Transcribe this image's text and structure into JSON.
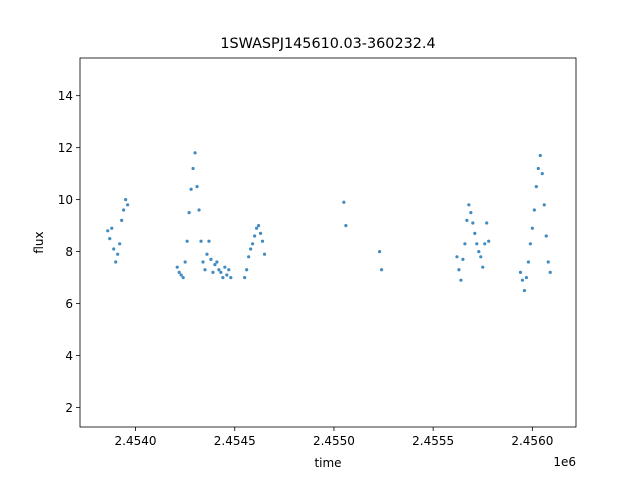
{
  "chart_data": {
    "type": "scatter",
    "title": "1SWASPJ145610.03-360232.4",
    "xlabel": "time",
    "ylabel": "flux",
    "x_offset_label": "1e6",
    "xlim": [
      2.45372,
      2.45622
    ],
    "ylim": [
      1.25,
      15.45
    ],
    "x_ticks": [
      2.454,
      2.4545,
      2.455,
      2.4555,
      2.456
    ],
    "x_tick_labels": [
      "2.4540",
      "2.4545",
      "2.4550",
      "2.4555",
      "2.4560"
    ],
    "y_ticks": [
      2,
      4,
      6,
      8,
      10,
      12,
      14
    ],
    "y_tick_labels": [
      "2",
      "4",
      "6",
      "8",
      "10",
      "12",
      "14"
    ],
    "grid": false,
    "marker_color": "#1f77b4",
    "series": [
      {
        "x": [
          2.45386,
          2.45387,
          2.45388,
          2.45389,
          2.4539,
          2.45391,
          2.45392,
          2.45393,
          2.45394,
          2.45395,
          2.45396,
          2.45421,
          2.45422,
          2.45423,
          2.45424,
          2.45425,
          2.45426,
          2.45427,
          2.45428,
          2.45429,
          2.4543,
          2.45431,
          2.45432,
          2.45433,
          2.45434,
          2.45435,
          2.45436,
          2.45437,
          2.45438,
          2.45439,
          2.4544,
          2.45441,
          2.45442,
          2.45443,
          2.45444,
          2.45445,
          2.45446,
          2.45447,
          2.45448,
          2.45455,
          2.45456,
          2.45457,
          2.45458,
          2.45459,
          2.4546,
          2.45461,
          2.45462,
          2.45463,
          2.45464,
          2.45465,
          2.45505,
          2.45506,
          2.45523,
          2.45524,
          2.45562,
          2.45563,
          2.45564,
          2.45565,
          2.45566,
          2.45567,
          2.45568,
          2.45569,
          2.4557,
          2.45571,
          2.45572,
          2.45573,
          2.45574,
          2.45575,
          2.45576,
          2.45577,
          2.45578,
          2.45594,
          2.45595,
          2.45596,
          2.45597,
          2.45598,
          2.45599,
          2.456,
          2.45601,
          2.45602,
          2.45603,
          2.45604,
          2.45605,
          2.45606,
          2.45607,
          2.45608,
          2.45609
        ],
        "y": [
          8.8,
          8.5,
          8.9,
          8.1,
          7.6,
          7.9,
          8.3,
          9.2,
          9.6,
          10.0,
          9.8,
          7.4,
          7.2,
          7.1,
          7.0,
          7.6,
          8.4,
          9.5,
          10.4,
          11.2,
          11.8,
          10.5,
          9.6,
          8.4,
          7.6,
          7.3,
          7.9,
          8.4,
          7.7,
          7.2,
          7.5,
          7.6,
          7.3,
          7.2,
          7.0,
          7.4,
          7.1,
          7.3,
          7.0,
          7.0,
          7.3,
          7.8,
          8.1,
          8.3,
          8.6,
          8.9,
          9.0,
          8.7,
          8.4,
          7.9,
          9.9,
          9.0,
          8.0,
          7.3,
          7.8,
          7.3,
          6.9,
          7.7,
          8.3,
          9.2,
          9.8,
          9.5,
          9.1,
          8.7,
          8.3,
          8.0,
          7.8,
          7.4,
          8.3,
          9.1,
          8.4,
          7.2,
          6.9,
          6.5,
          7.0,
          7.6,
          8.3,
          8.9,
          9.6,
          10.5,
          11.2,
          11.7,
          11.0,
          9.8,
          8.6,
          7.6,
          7.2
        ]
      }
    ]
  }
}
